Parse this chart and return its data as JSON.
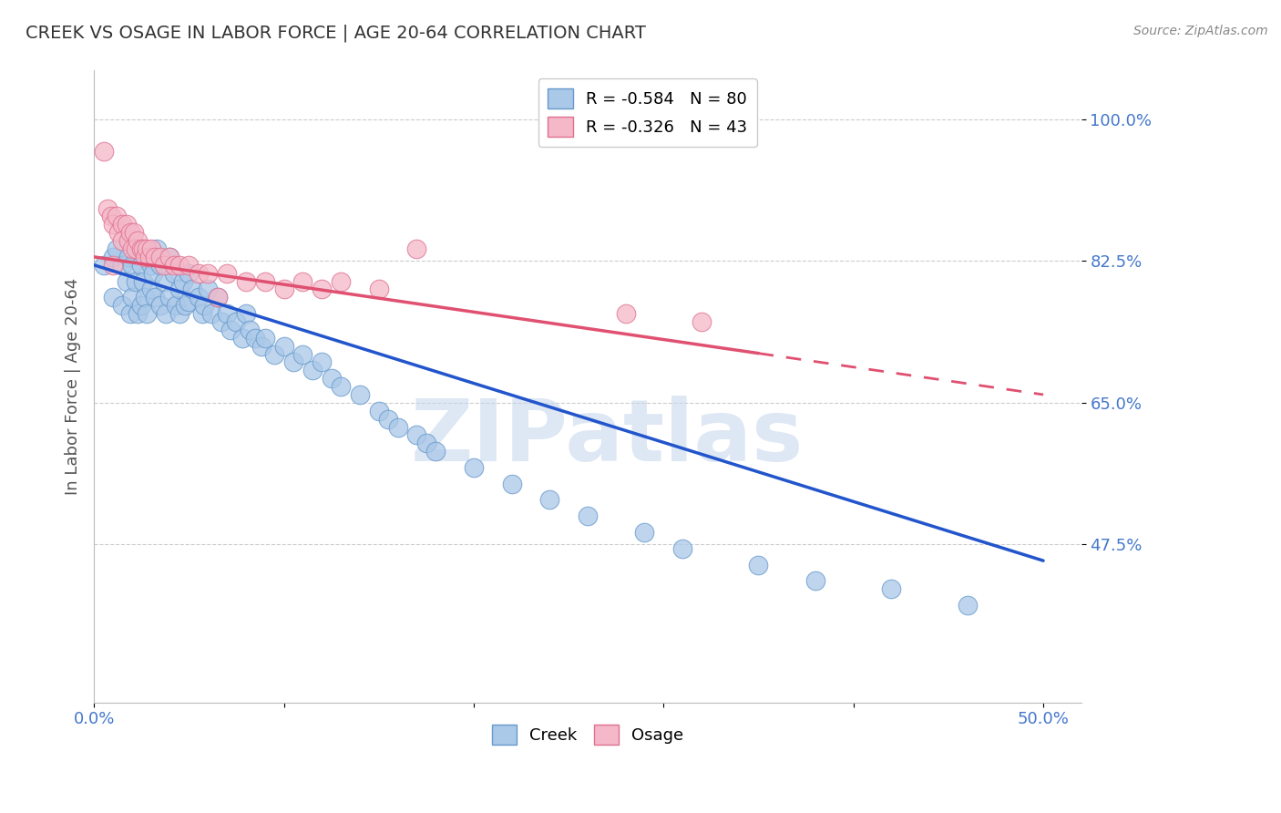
{
  "title": "CREEK VS OSAGE IN LABOR FORCE | AGE 20-64 CORRELATION CHART",
  "source": "Source: ZipAtlas.com",
  "ylabel": "In Labor Force | Age 20-64",
  "xlim": [
    0.0,
    0.52
  ],
  "ylim": [
    0.28,
    1.06
  ],
  "xticks": [
    0.0,
    0.1,
    0.2,
    0.3,
    0.4,
    0.5
  ],
  "xticklabels": [
    "0.0%",
    "",
    "",
    "",
    "",
    "50.0%"
  ],
  "yticks": [
    0.475,
    0.65,
    0.825,
    1.0
  ],
  "yticklabels": [
    "47.5%",
    "65.0%",
    "82.5%",
    "100.0%"
  ],
  "creek_color": "#aac8e8",
  "creek_edge": "#6699cc",
  "osage_color": "#f4b8c8",
  "osage_edge": "#e07090",
  "trend_creek_color": "#2255cc",
  "trend_osage_color": "#e05070",
  "legend_creek_R": "-0.584",
  "legend_creek_N": "80",
  "legend_osage_R": "-0.326",
  "legend_osage_N": "43",
  "grid_color": "#cccccc",
  "background_color": "#ffffff",
  "creek_x": [
    0.005,
    0.01,
    0.01,
    0.012,
    0.015,
    0.015,
    0.017,
    0.018,
    0.019,
    0.02,
    0.02,
    0.022,
    0.022,
    0.023,
    0.025,
    0.025,
    0.026,
    0.027,
    0.028,
    0.03,
    0.03,
    0.031,
    0.032,
    0.033,
    0.035,
    0.035,
    0.037,
    0.038,
    0.04,
    0.04,
    0.042,
    0.043,
    0.045,
    0.045,
    0.047,
    0.048,
    0.05,
    0.05,
    0.052,
    0.055,
    0.057,
    0.058,
    0.06,
    0.062,
    0.065,
    0.067,
    0.07,
    0.072,
    0.075,
    0.078,
    0.08,
    0.082,
    0.085,
    0.088,
    0.09,
    0.095,
    0.1,
    0.105,
    0.11,
    0.115,
    0.12,
    0.125,
    0.13,
    0.14,
    0.15,
    0.155,
    0.16,
    0.17,
    0.175,
    0.18,
    0.2,
    0.22,
    0.24,
    0.26,
    0.29,
    0.31,
    0.35,
    0.38,
    0.42,
    0.46
  ],
  "creek_y": [
    0.82,
    0.83,
    0.78,
    0.84,
    0.82,
    0.77,
    0.8,
    0.83,
    0.76,
    0.82,
    0.78,
    0.84,
    0.8,
    0.76,
    0.82,
    0.77,
    0.8,
    0.78,
    0.76,
    0.82,
    0.79,
    0.81,
    0.78,
    0.84,
    0.82,
    0.77,
    0.8,
    0.76,
    0.83,
    0.78,
    0.81,
    0.77,
    0.79,
    0.76,
    0.8,
    0.77,
    0.81,
    0.775,
    0.79,
    0.78,
    0.76,
    0.77,
    0.79,
    0.76,
    0.78,
    0.75,
    0.76,
    0.74,
    0.75,
    0.73,
    0.76,
    0.74,
    0.73,
    0.72,
    0.73,
    0.71,
    0.72,
    0.7,
    0.71,
    0.69,
    0.7,
    0.68,
    0.67,
    0.66,
    0.64,
    0.63,
    0.62,
    0.61,
    0.6,
    0.59,
    0.57,
    0.55,
    0.53,
    0.51,
    0.49,
    0.47,
    0.45,
    0.43,
    0.42,
    0.4
  ],
  "osage_x": [
    0.005,
    0.007,
    0.009,
    0.01,
    0.012,
    0.013,
    0.015,
    0.015,
    0.017,
    0.018,
    0.019,
    0.02,
    0.021,
    0.022,
    0.023,
    0.025,
    0.026,
    0.027,
    0.028,
    0.029,
    0.03,
    0.032,
    0.035,
    0.037,
    0.04,
    0.042,
    0.045,
    0.05,
    0.055,
    0.06,
    0.065,
    0.07,
    0.08,
    0.09,
    0.1,
    0.11,
    0.12,
    0.13,
    0.15,
    0.17,
    0.28,
    0.32,
    0.01
  ],
  "osage_y": [
    0.96,
    0.89,
    0.88,
    0.87,
    0.88,
    0.86,
    0.87,
    0.85,
    0.87,
    0.85,
    0.86,
    0.84,
    0.86,
    0.84,
    0.85,
    0.84,
    0.84,
    0.83,
    0.84,
    0.83,
    0.84,
    0.83,
    0.83,
    0.82,
    0.83,
    0.82,
    0.82,
    0.82,
    0.81,
    0.81,
    0.78,
    0.81,
    0.8,
    0.8,
    0.79,
    0.8,
    0.79,
    0.8,
    0.79,
    0.84,
    0.76,
    0.75,
    0.82
  ],
  "creek_trend_x0": 0.0,
  "creek_trend_x1": 0.5,
  "creek_trend_y0": 0.82,
  "creek_trend_y1": 0.455,
  "osage_trend_x0": 0.0,
  "osage_trend_x1": 0.5,
  "osage_trend_y0": 0.83,
  "osage_trend_y1": 0.66,
  "watermark_text": "ZIPatlas",
  "watermark_color": "#c8d8ee",
  "watermark_alpha": 0.6
}
